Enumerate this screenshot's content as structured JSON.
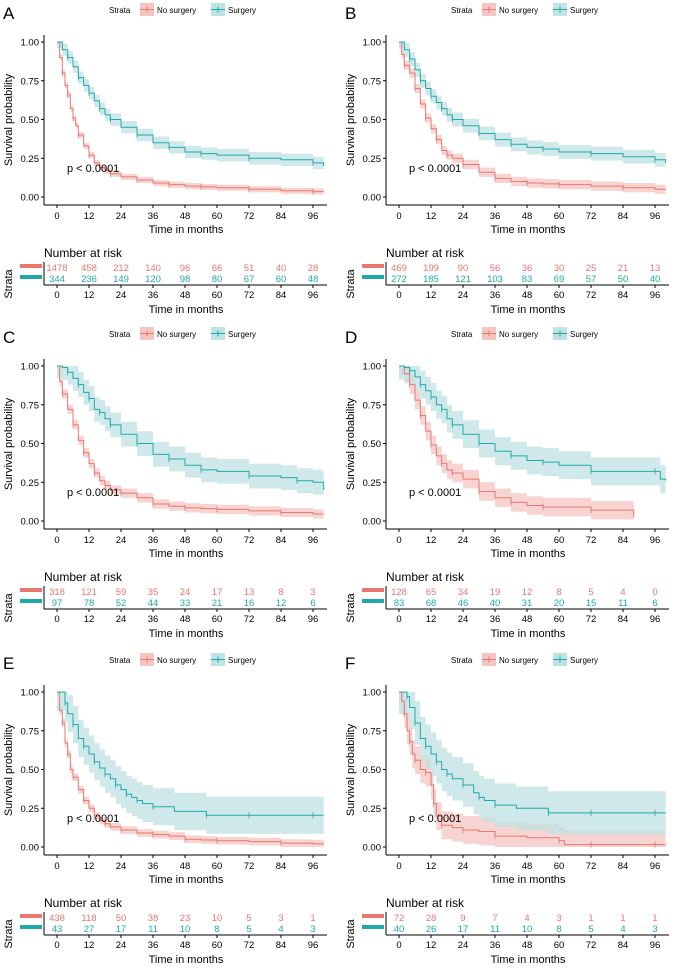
{
  "figure": {
    "legend_title": "Strata",
    "legend_labels": [
      "No surgery",
      "Surgery"
    ],
    "colors": {
      "no_surgery": "#E7776F",
      "surgery": "#20A9A9",
      "no_surgery_band": "#F4C5C1",
      "surgery_band": "#BFE2E3",
      "axis": "#000000",
      "text": "#000000"
    },
    "risk_table_title": "Number at risk",
    "risk_table_ylabel": "Strata"
  },
  "chart_data": [
    {
      "panel": "A",
      "type": "line",
      "xlabel": "Time in months",
      "ylabel": "Survival probability",
      "xticks": [
        0,
        12,
        24,
        36,
        48,
        60,
        72,
        84,
        96
      ],
      "yticks": [
        "0.00",
        "0.25",
        "0.50",
        "0.75",
        "1.00"
      ],
      "xlim": [
        0,
        100
      ],
      "ylim": [
        0,
        1
      ],
      "annotation": "p < 0.0001",
      "series": [
        {
          "name": "No surgery",
          "x": [
            0,
            1,
            2,
            3,
            4,
            5,
            6,
            7,
            8,
            10,
            12,
            14,
            16,
            18,
            20,
            24,
            30,
            36,
            42,
            48,
            54,
            60,
            72,
            84,
            96,
            100
          ],
          "y": [
            1.0,
            0.9,
            0.8,
            0.72,
            0.66,
            0.57,
            0.51,
            0.46,
            0.4,
            0.33,
            0.27,
            0.22,
            0.19,
            0.17,
            0.15,
            0.13,
            0.11,
            0.09,
            0.08,
            0.07,
            0.065,
            0.06,
            0.05,
            0.04,
            0.035,
            0.035
          ],
          "band": 0.02
        },
        {
          "name": "Surgery",
          "x": [
            0,
            2,
            4,
            6,
            8,
            10,
            12,
            14,
            16,
            18,
            20,
            24,
            30,
            36,
            42,
            48,
            54,
            60,
            72,
            84,
            96,
            100
          ],
          "y": [
            1.0,
            0.95,
            0.9,
            0.84,
            0.77,
            0.72,
            0.67,
            0.62,
            0.57,
            0.53,
            0.5,
            0.45,
            0.4,
            0.35,
            0.32,
            0.29,
            0.28,
            0.27,
            0.25,
            0.24,
            0.22,
            0.2
          ],
          "band": 0.04
        }
      ],
      "risk_table": {
        "No surgery": [
          1478,
          458,
          212,
          140,
          96,
          66,
          51,
          40,
          28
        ],
        "Surgery": [
          344,
          236,
          149,
          120,
          98,
          80,
          67,
          60,
          48
        ]
      }
    },
    {
      "panel": "B",
      "type": "line",
      "xlabel": "Time in months",
      "ylabel": "Survival probability",
      "xticks": [
        0,
        12,
        24,
        36,
        48,
        60,
        72,
        84,
        96
      ],
      "yticks": [
        "0.00",
        "0.25",
        "0.50",
        "0.75",
        "1.00"
      ],
      "xlim": [
        0,
        100
      ],
      "ylim": [
        0,
        1
      ],
      "annotation": "p < 0.0001",
      "series": [
        {
          "name": "No surgery",
          "x": [
            0,
            1,
            2,
            4,
            6,
            8,
            10,
            12,
            14,
            16,
            18,
            20,
            24,
            30,
            36,
            42,
            48,
            54,
            60,
            72,
            84,
            96,
            100
          ],
          "y": [
            1.0,
            0.92,
            0.85,
            0.8,
            0.7,
            0.6,
            0.51,
            0.44,
            0.37,
            0.3,
            0.27,
            0.25,
            0.21,
            0.16,
            0.12,
            0.1,
            0.09,
            0.085,
            0.08,
            0.07,
            0.06,
            0.05,
            0.05
          ],
          "band": 0.03
        },
        {
          "name": "Surgery",
          "x": [
            0,
            2,
            4,
            6,
            8,
            10,
            12,
            14,
            16,
            18,
            20,
            24,
            30,
            36,
            42,
            48,
            54,
            60,
            72,
            84,
            96,
            100
          ],
          "y": [
            1.0,
            0.95,
            0.89,
            0.82,
            0.75,
            0.7,
            0.65,
            0.61,
            0.57,
            0.53,
            0.5,
            0.46,
            0.41,
            0.37,
            0.34,
            0.32,
            0.31,
            0.29,
            0.28,
            0.26,
            0.24,
            0.22
          ],
          "band": 0.045
        }
      ],
      "risk_table": {
        "No surgery": [
          469,
          199,
          90,
          56,
          36,
          30,
          25,
          21,
          13
        ],
        "Surgery": [
          272,
          185,
          121,
          103,
          83,
          69,
          57,
          50,
          40
        ]
      }
    },
    {
      "panel": "C",
      "type": "line",
      "xlabel": "Time in months",
      "ylabel": "Survival probability",
      "xticks": [
        0,
        12,
        24,
        36,
        48,
        60,
        72,
        84,
        96
      ],
      "yticks": [
        "0.00",
        "0.25",
        "0.50",
        "0.75",
        "1.00"
      ],
      "xlim": [
        0,
        100
      ],
      "ylim": [
        0,
        1
      ],
      "annotation": "p < 0.0001",
      "series": [
        {
          "name": "No surgery",
          "x": [
            0,
            1,
            2,
            4,
            6,
            8,
            10,
            12,
            14,
            16,
            18,
            20,
            24,
            30,
            36,
            42,
            48,
            54,
            60,
            72,
            84,
            96,
            100
          ],
          "y": [
            1.0,
            0.9,
            0.82,
            0.72,
            0.62,
            0.52,
            0.44,
            0.37,
            0.31,
            0.26,
            0.23,
            0.2,
            0.18,
            0.15,
            0.11,
            0.095,
            0.085,
            0.08,
            0.075,
            0.065,
            0.055,
            0.045,
            0.045
          ],
          "band": 0.03
        },
        {
          "name": "Surgery",
          "x": [
            0,
            2,
            4,
            6,
            8,
            10,
            12,
            14,
            16,
            18,
            20,
            24,
            30,
            36,
            42,
            48,
            54,
            60,
            72,
            84,
            90,
            96,
            100
          ],
          "y": [
            1.0,
            0.99,
            0.96,
            0.92,
            0.88,
            0.83,
            0.79,
            0.72,
            0.7,
            0.66,
            0.62,
            0.56,
            0.5,
            0.43,
            0.4,
            0.36,
            0.33,
            0.32,
            0.29,
            0.28,
            0.26,
            0.25,
            0.2
          ],
          "band": 0.08
        }
      ],
      "risk_table": {
        "No surgery": [
          318,
          121,
          59,
          35,
          24,
          17,
          13,
          8,
          3
        ],
        "Surgery": [
          97,
          78,
          52,
          44,
          33,
          21,
          16,
          12,
          6
        ]
      }
    },
    {
      "panel": "D",
      "type": "line",
      "xlabel": "Time in months",
      "ylabel": "Survival probability",
      "xticks": [
        0,
        12,
        24,
        36,
        48,
        60,
        72,
        84,
        96
      ],
      "yticks": [
        "0.00",
        "0.25",
        "0.50",
        "0.75",
        "1.00"
      ],
      "xlim": [
        0,
        100
      ],
      "ylim": [
        0,
        1
      ],
      "annotation": "p < 0.0001",
      "series": [
        {
          "name": "No surgery",
          "x": [
            0,
            2,
            4,
            6,
            8,
            10,
            12,
            14,
            16,
            18,
            20,
            24,
            30,
            36,
            42,
            48,
            54,
            60,
            72,
            84,
            88
          ],
          "y": [
            1.0,
            0.95,
            0.88,
            0.78,
            0.68,
            0.58,
            0.49,
            0.42,
            0.37,
            0.33,
            0.31,
            0.27,
            0.19,
            0.15,
            0.12,
            0.1,
            0.09,
            0.09,
            0.07,
            0.07,
            0.04
          ],
          "band": 0.06
        },
        {
          "name": "Surgery",
          "x": [
            0,
            2,
            4,
            6,
            8,
            10,
            12,
            14,
            16,
            18,
            20,
            24,
            30,
            36,
            42,
            48,
            54,
            60,
            72,
            84,
            96,
            98,
            100
          ],
          "y": [
            1.0,
            0.99,
            0.97,
            0.93,
            0.88,
            0.84,
            0.8,
            0.75,
            0.72,
            0.66,
            0.62,
            0.56,
            0.5,
            0.45,
            0.42,
            0.39,
            0.38,
            0.36,
            0.32,
            0.32,
            0.32,
            0.27,
            0.26
          ],
          "band": 0.09
        }
      ],
      "risk_table": {
        "No surgery": [
          128,
          65,
          34,
          19,
          12,
          8,
          5,
          4,
          0
        ],
        "Surgery": [
          83,
          68,
          46,
          40,
          31,
          20,
          15,
          11,
          6
        ]
      }
    },
    {
      "panel": "E",
      "type": "line",
      "xlabel": "Time in months",
      "ylabel": "Survival probability",
      "xticks": [
        0,
        12,
        24,
        36,
        48,
        60,
        72,
        84,
        96
      ],
      "yticks": [
        "0.00",
        "0.25",
        "0.50",
        "0.75",
        "1.00"
      ],
      "xlim": [
        0,
        100
      ],
      "ylim": [
        0,
        1
      ],
      "annotation": "p < 0.0001",
      "series": [
        {
          "name": "No surgery",
          "x": [
            0,
            1,
            2,
            3,
            4,
            5,
            6,
            8,
            10,
            12,
            14,
            16,
            18,
            20,
            24,
            30,
            36,
            42,
            48,
            54,
            60,
            72,
            84,
            96,
            100
          ],
          "y": [
            1.0,
            0.88,
            0.8,
            0.67,
            0.6,
            0.5,
            0.45,
            0.37,
            0.3,
            0.25,
            0.2,
            0.17,
            0.15,
            0.13,
            0.11,
            0.09,
            0.08,
            0.07,
            0.05,
            0.045,
            0.04,
            0.035,
            0.025,
            0.02,
            0.015
          ],
          "band": 0.025
        },
        {
          "name": "Surgery",
          "x": [
            0,
            2,
            3,
            4,
            6,
            8,
            10,
            12,
            14,
            16,
            18,
            20,
            22,
            24,
            26,
            28,
            30,
            32,
            36,
            44,
            56,
            60,
            72,
            84,
            96,
            100
          ],
          "y": [
            1.0,
            1.0,
            0.93,
            0.86,
            0.79,
            0.7,
            0.65,
            0.6,
            0.55,
            0.51,
            0.47,
            0.44,
            0.4,
            0.37,
            0.34,
            0.32,
            0.3,
            0.28,
            0.26,
            0.23,
            0.205,
            0.205,
            0.205,
            0.205,
            0.205,
            0.205
          ],
          "band": 0.12
        }
      ],
      "risk_table": {
        "No surgery": [
          438,
          118,
          50,
          38,
          23,
          10,
          5,
          3,
          1
        ],
        "Surgery": [
          43,
          27,
          17,
          11,
          10,
          8,
          5,
          4,
          3
        ]
      }
    },
    {
      "panel": "F",
      "type": "line",
      "xlabel": "Time in months",
      "ylabel": "Survival probability",
      "xticks": [
        0,
        12,
        24,
        36,
        48,
        60,
        72,
        84,
        96
      ],
      "yticks": [
        "0.00",
        "0.25",
        "0.50",
        "0.75",
        "1.00"
      ],
      "xlim": [
        0,
        100
      ],
      "ylim": [
        0,
        1
      ],
      "annotation": "p < 0.0001",
      "series": [
        {
          "name": "No surgery",
          "x": [
            0,
            1,
            2,
            3,
            4,
            5,
            6,
            8,
            10,
            12,
            13,
            14,
            16,
            20,
            24,
            30,
            36,
            48,
            60,
            62,
            72,
            84,
            96,
            100
          ],
          "y": [
            1.0,
            0.94,
            0.86,
            0.75,
            0.68,
            0.6,
            0.56,
            0.5,
            0.48,
            0.4,
            0.28,
            0.2,
            0.14,
            0.125,
            0.11,
            0.1,
            0.07,
            0.06,
            0.04,
            0.015,
            0.015,
            0.015,
            0.015,
            0.015
          ],
          "band": 0.09
        },
        {
          "name": "Surgery",
          "x": [
            0,
            2,
            3,
            4,
            6,
            8,
            10,
            12,
            14,
            16,
            18,
            20,
            24,
            28,
            30,
            32,
            36,
            44,
            56,
            60,
            72,
            84,
            96,
            100
          ],
          "y": [
            1.0,
            1.0,
            0.97,
            0.9,
            0.8,
            0.7,
            0.65,
            0.6,
            0.55,
            0.5,
            0.47,
            0.44,
            0.4,
            0.35,
            0.32,
            0.3,
            0.27,
            0.25,
            0.22,
            0.22,
            0.22,
            0.22,
            0.22,
            0.22
          ],
          "band": 0.14
        }
      ],
      "risk_table": {
        "No surgery": [
          72,
          28,
          9,
          7,
          4,
          3,
          1,
          1,
          1
        ],
        "Surgery": [
          40,
          26,
          17,
          11,
          10,
          8,
          5,
          4,
          3
        ]
      }
    }
  ]
}
